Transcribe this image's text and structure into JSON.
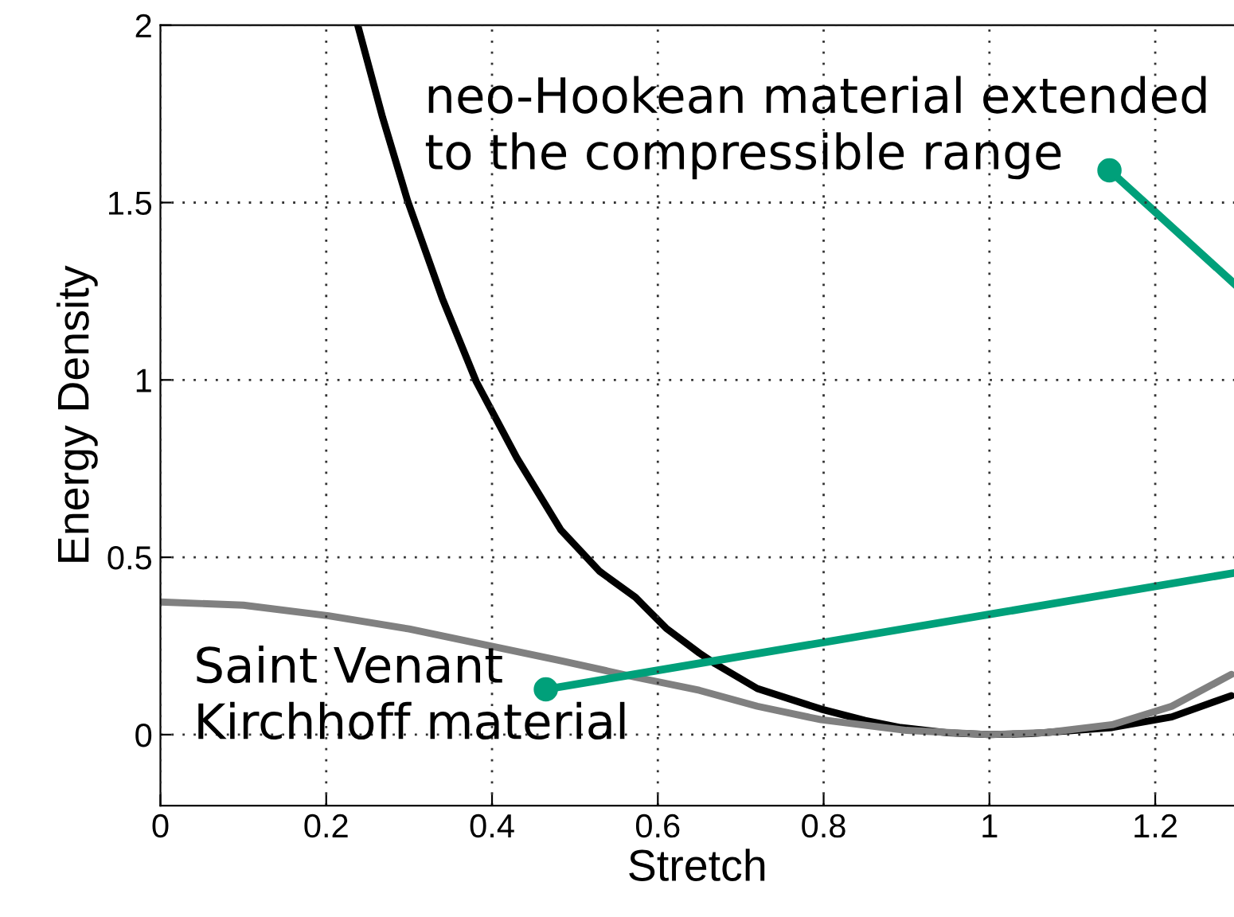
{
  "chart_data": {
    "type": "line",
    "xlabel": "Stretch",
    "ylabel": "Energy Density",
    "series": [
      {
        "color": "#000000",
        "x": [
          0.238,
          0.268,
          0.298,
          0.34,
          0.381,
          0.43,
          0.483,
          0.53,
          0.573,
          0.61,
          0.65,
          0.669,
          0.72,
          0.797,
          0.85,
          0.893,
          0.95,
          1.0,
          1.05,
          1.148,
          1.22,
          1.292
        ],
        "values": [
          2.0,
          1.74,
          1.506,
          1.23,
          0.995,
          0.78,
          0.577,
          0.46,
          0.387,
          0.3,
          0.23,
          0.2,
          0.13,
          0.072,
          0.04,
          0.02,
          0.005,
          0,
          0.003,
          0.02,
          0.05,
          0.11
        ]
      },
      {
        "color": "#808080",
        "x": [
          0,
          0.1,
          0.203,
          0.3,
          0.394,
          0.48,
          0.573,
          0.65,
          0.72,
          0.797,
          0.9,
          1.0,
          1.07,
          1.148,
          1.22,
          1.292
        ],
        "values": [
          0.374,
          0.365,
          0.335,
          0.298,
          0.252,
          0.21,
          0.162,
          0.125,
          0.08,
          0.042,
          0.012,
          0,
          0.006,
          0.028,
          0.08,
          0.17
        ]
      }
    ],
    "annotations": [
      "neo-Hookean material extended\nto the compressible range",
      "Saint Venant\nKirchhoff material"
    ],
    "xlim": [
      0,
      1.295
    ],
    "ylim": [
      -0.2,
      2
    ],
    "xticks": [
      0,
      0.2,
      0.4,
      0.6,
      0.8,
      1,
      1.2
    ],
    "yticks": [
      0,
      0.5,
      1,
      1.5,
      2
    ],
    "grid": true,
    "line_style": "solid",
    "marker": "none"
  }
}
